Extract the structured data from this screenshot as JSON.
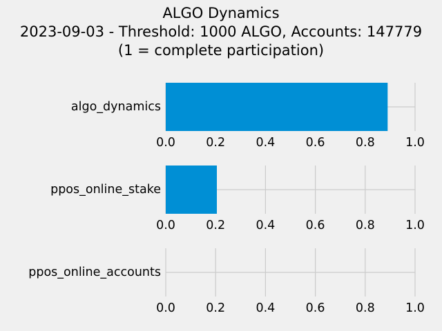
{
  "chart_data": {
    "type": "bar",
    "orientation": "horizontal",
    "title_lines": [
      "ALGO Dynamics",
      "2023-09-03 - Threshold: 1000 ALGO, Accounts: 147779",
      "(1 = complete participation)"
    ],
    "xlim": [
      0,
      1
    ],
    "x_ticks": [
      "0.0",
      "0.2",
      "0.4",
      "0.6",
      "0.8",
      "1.0"
    ],
    "grid": true,
    "bar_color": "#008fd5",
    "grid_color": "#cbcbcb",
    "background_color": "#f0f0f0",
    "subplots": [
      {
        "category": "algo_dynamics",
        "value": 0.89
      },
      {
        "category": "ppos_online_stake",
        "value": 0.205
      },
      {
        "category": "ppos_online_accounts",
        "value": 0.0
      }
    ]
  }
}
